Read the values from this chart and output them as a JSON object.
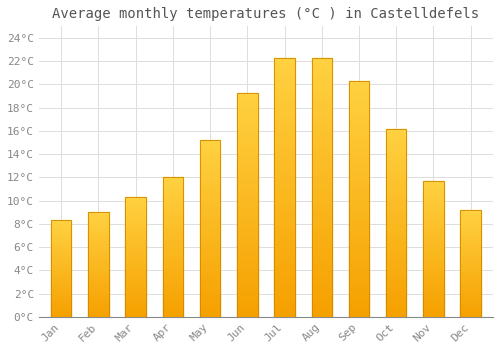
{
  "title": "Average monthly temperatures (°C ) in Castelldefels",
  "months": [
    "Jan",
    "Feb",
    "Mar",
    "Apr",
    "May",
    "Jun",
    "Jul",
    "Aug",
    "Sep",
    "Oct",
    "Nov",
    "Dec"
  ],
  "values": [
    8.3,
    9.0,
    10.3,
    12.0,
    15.2,
    19.3,
    22.3,
    22.3,
    20.3,
    16.2,
    11.7,
    9.2
  ],
  "bar_color_top": "#FFD040",
  "bar_color_bottom": "#F5A000",
  "bar_edge_color": "#CC8800",
  "background_color": "#FFFFFF",
  "grid_color": "#DDDDDD",
  "ylim": [
    0,
    25
  ],
  "ytick_step": 2,
  "title_fontsize": 10,
  "tick_fontsize": 8,
  "tick_color": "#888888",
  "title_color": "#555555",
  "font_family": "monospace",
  "bar_width": 0.55
}
